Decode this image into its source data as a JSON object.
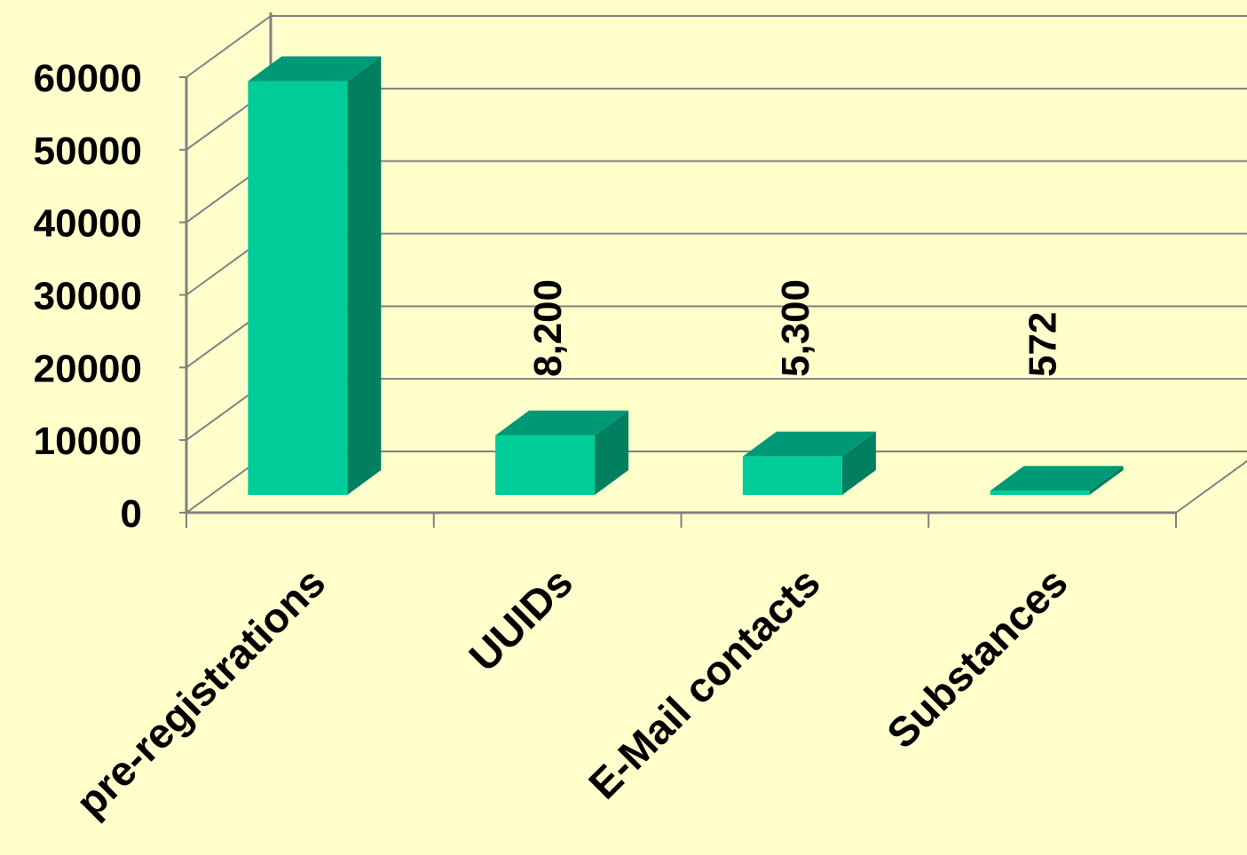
{
  "chart_data": {
    "type": "bar",
    "categories": [
      "pre-registrations",
      "UUIDs",
      "E-Mail contacts",
      "Substances"
    ],
    "values": [
      57000,
      8200,
      5300,
      572
    ],
    "data_labels": [
      "",
      "8,200",
      "5,300",
      "572"
    ],
    "ylim": [
      0,
      60000
    ],
    "yticks": [
      "0",
      "10000",
      "20000",
      "30000",
      "40000",
      "50000",
      "60000"
    ],
    "grid": true,
    "legend": "none",
    "colors": {
      "front": "#00cc99",
      "top": "#009977",
      "side": "#008060",
      "background": "#ffffcc",
      "grid": "#808080"
    }
  }
}
